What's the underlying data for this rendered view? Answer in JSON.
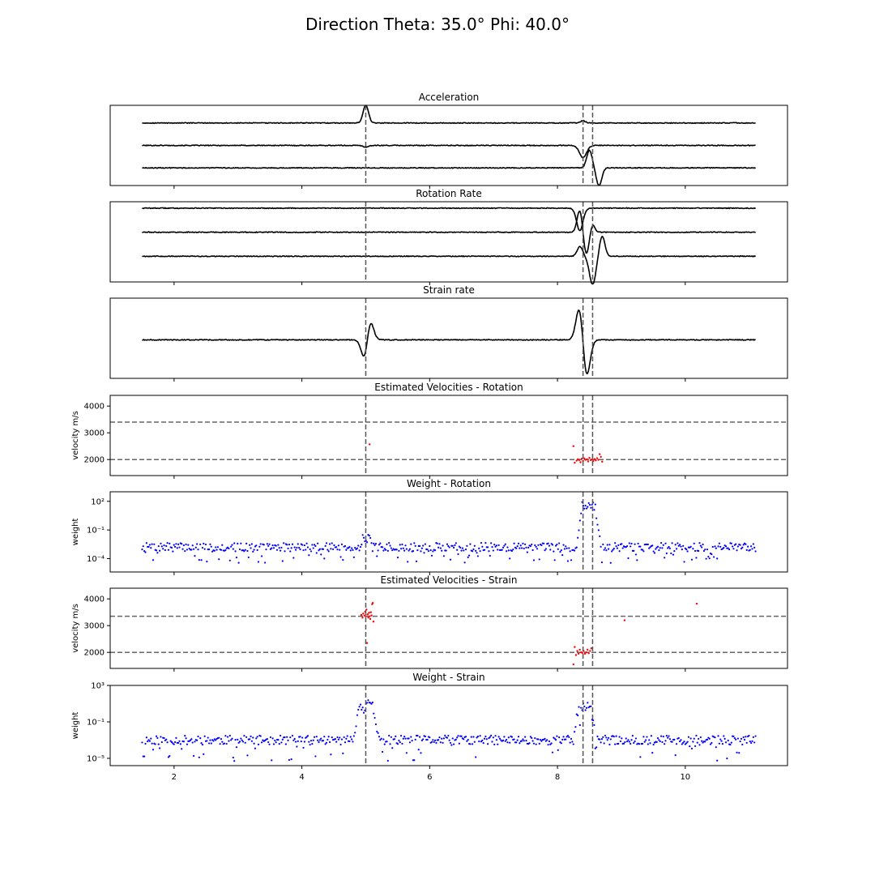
{
  "figure": {
    "suptitle": "Direction Theta: 35.0° Phi: 40.0°"
  },
  "chart_data": [
    {
      "type": "line",
      "title": "Acceleration",
      "xlim": [
        1.0,
        11.6
      ],
      "x_tick_labels_visible": false,
      "events_x": [
        5.0,
        8.4,
        8.55
      ],
      "series": [
        {
          "offset": 0.78,
          "pulses": [
            [
              5.0,
              0.22,
              0.06
            ],
            [
              8.4,
              0.03,
              0.05
            ]
          ]
        },
        {
          "offset": 0.5,
          "pulses": [
            [
              5.0,
              -0.02,
              0.06
            ],
            [
              8.4,
              -0.15,
              0.08
            ]
          ]
        },
        {
          "offset": 0.22,
          "pulses": [
            [
              8.5,
              0.22,
              0.06
            ],
            [
              8.65,
              -0.22,
              0.06
            ]
          ]
        }
      ]
    },
    {
      "type": "line",
      "title": "Rotation Rate",
      "xlim": [
        1.0,
        11.6
      ],
      "x_tick_labels_visible": false,
      "events_x": [
        5.0,
        8.4,
        8.55
      ],
      "series": [
        {
          "offset": 0.92,
          "pulses": [
            [
              8.35,
              -0.28,
              0.07
            ]
          ]
        },
        {
          "offset": 0.62,
          "pulses": [
            [
              8.35,
              0.28,
              0.06
            ],
            [
              8.45,
              -0.28,
              0.06
            ],
            [
              8.55,
              0.1,
              0.05
            ]
          ]
        },
        {
          "offset": 0.32,
          "pulses": [
            [
              8.35,
              0.12,
              0.06
            ],
            [
              8.55,
              -0.35,
              0.07
            ],
            [
              8.7,
              0.25,
              0.06
            ]
          ]
        }
      ]
    },
    {
      "type": "line",
      "title": "Strain rate",
      "xlim": [
        1.0,
        11.6
      ],
      "x_tick_labels_visible": false,
      "events_x": [
        5.0,
        8.4,
        8.55
      ],
      "series": [
        {
          "offset": 0.48,
          "pulses": [
            [
              5.0,
              -0.4,
              0.08
            ],
            [
              5.05,
              0.4,
              0.08
            ],
            [
              8.35,
              0.45,
              0.08
            ],
            [
              8.45,
              -0.5,
              0.08
            ]
          ]
        }
      ]
    },
    {
      "type": "scatter",
      "title": "Estimated Velocities - Rotation",
      "ylabel": "velocity m/s",
      "xlim": [
        1.0,
        11.6
      ],
      "ylim": [
        1400,
        4400
      ],
      "yscale": "linear",
      "y_ticks": [
        2000,
        3000,
        4000
      ],
      "y_tick_labels": [
        "2000",
        "3000",
        "4000"
      ],
      "x_tick_labels_visible": false,
      "events_x": [
        5.0,
        8.4,
        8.55
      ],
      "hlines_y": [
        2000,
        3400
      ],
      "point_color": "#ff0000",
      "points": [
        [
          5.06,
          2570
        ],
        [
          8.25,
          2500
        ],
        [
          8.27,
          1880
        ],
        [
          8.3,
          1960
        ],
        [
          8.32,
          2010
        ],
        [
          8.34,
          1980
        ],
        [
          8.36,
          1900
        ],
        [
          8.38,
          2030
        ],
        [
          8.4,
          1950
        ],
        [
          8.42,
          2040
        ],
        [
          8.44,
          1990
        ],
        [
          8.46,
          2010
        ],
        [
          8.48,
          1930
        ],
        [
          8.5,
          2060
        ],
        [
          8.52,
          1980
        ],
        [
          8.54,
          2000
        ],
        [
          8.56,
          1940
        ],
        [
          8.58,
          2020
        ],
        [
          8.6,
          1970
        ],
        [
          8.62,
          2050
        ],
        [
          8.64,
          1990
        ],
        [
          8.66,
          2200
        ],
        [
          8.68,
          2100
        ],
        [
          8.7,
          1920
        ]
      ]
    },
    {
      "type": "scatter",
      "title": "Weight - Rotation",
      "ylabel": "weight",
      "xlim": [
        1.0,
        11.6
      ],
      "ylim": [
        -5.4,
        3.0
      ],
      "yscale": "log",
      "y_ticks": [
        2,
        -1,
        -4
      ],
      "y_tick_labels": [
        "10²",
        "10⁻¹",
        "10⁻⁴"
      ],
      "x_tick_labels_visible": false,
      "events_x": [
        5.0,
        8.4,
        8.55
      ],
      "point_color": "#0000ff",
      "scatter_cloud": {
        "x_start": 1.5,
        "x_end": 11.1,
        "count": 560,
        "baseline_log10": -2.8,
        "noise_log10": 0.45,
        "low_outlier_log10": -4.0,
        "bumps": [
          {
            "x_from": 4.9,
            "x_to": 5.1,
            "level_log10": -1.8
          },
          {
            "x_from": 8.3,
            "x_to": 8.68,
            "level_log10": 1.5
          }
        ],
        "seed": 7
      }
    },
    {
      "type": "scatter",
      "title": "Estimated Velocities - Strain",
      "ylabel": "velocity m/s",
      "xlim": [
        1.0,
        11.6
      ],
      "ylim": [
        1400,
        4400
      ],
      "yscale": "linear",
      "y_ticks": [
        2000,
        3000,
        4000
      ],
      "y_tick_labels": [
        "2000",
        "3000",
        "4000"
      ],
      "x_tick_labels_visible": false,
      "events_x": [
        5.0,
        8.4,
        8.55
      ],
      "hlines_y": [
        2000,
        3350
      ],
      "point_color": "#ff0000",
      "points": [
        [
          4.93,
          3400
        ],
        [
          4.95,
          3300
        ],
        [
          4.96,
          3450
        ],
        [
          4.98,
          3380
        ],
        [
          4.99,
          3520
        ],
        [
          5.0,
          3350
        ],
        [
          5.01,
          3600
        ],
        [
          5.02,
          2350
        ],
        [
          5.03,
          3420
        ],
        [
          5.04,
          3300
        ],
        [
          5.05,
          3480
        ],
        [
          5.06,
          3350
        ],
        [
          5.07,
          3250
        ],
        [
          5.08,
          3500
        ],
        [
          5.09,
          3380
        ],
        [
          5.1,
          3800
        ],
        [
          5.11,
          3850
        ],
        [
          5.12,
          3150
        ],
        [
          8.25,
          1550
        ],
        [
          8.27,
          2200
        ],
        [
          8.29,
          1900
        ],
        [
          8.31,
          2050
        ],
        [
          8.33,
          1950
        ],
        [
          8.35,
          2100
        ],
        [
          8.37,
          2000
        ],
        [
          8.39,
          1980
        ],
        [
          8.41,
          2050
        ],
        [
          8.43,
          1950
        ],
        [
          8.45,
          2000
        ],
        [
          8.47,
          2100
        ],
        [
          8.49,
          1970
        ],
        [
          8.51,
          2050
        ],
        [
          8.53,
          2150
        ],
        [
          9.05,
          3200
        ],
        [
          10.18,
          3820
        ]
      ]
    },
    {
      "type": "scatter",
      "title": "Weight - Strain",
      "ylabel": "weight",
      "xlim": [
        1.0,
        11.6
      ],
      "ylim": [
        -5.8,
        3.0
      ],
      "yscale": "log",
      "y_ticks": [
        3,
        -1,
        -5
      ],
      "y_tick_labels": [
        "10³",
        "10⁻¹",
        "10⁻⁵"
      ],
      "x_ticks": [
        2,
        4,
        6,
        8,
        10
      ],
      "x_tick_labels": [
        "2",
        "4",
        "6",
        "8",
        "10"
      ],
      "x_tick_labels_visible": true,
      "events_x": [
        5.0,
        8.4,
        8.55
      ],
      "point_color": "#0000ff",
      "scatter_cloud": {
        "x_start": 1.5,
        "x_end": 11.1,
        "count": 560,
        "baseline_log10": -3.0,
        "noise_log10": 0.5,
        "low_outlier_log10": -4.8,
        "bumps": [
          {
            "x_from": 4.8,
            "x_to": 5.2,
            "level_log10": 0.8
          },
          {
            "x_from": 8.25,
            "x_to": 8.6,
            "level_log10": 0.8
          }
        ],
        "seed": 11
      }
    }
  ]
}
